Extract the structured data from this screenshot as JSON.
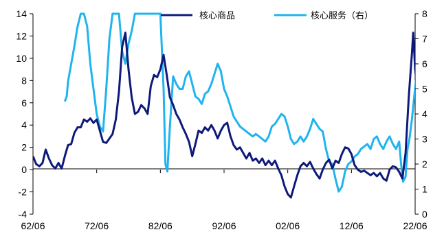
{
  "chart_data": {
    "type": "line",
    "x_ticks": [
      "62/06",
      "72/06",
      "82/06",
      "92/06",
      "02/06",
      "12/06",
      "22/06"
    ],
    "left_axis": {
      "ylim": [
        -4,
        14
      ],
      "ticks": [
        "-4",
        "-2",
        "0",
        "2",
        "4",
        "6",
        "8",
        "10",
        "12",
        "14"
      ]
    },
    "right_axis": {
      "ylim": [
        0,
        8
      ],
      "ticks": [
        "0",
        "1",
        "2",
        "3",
        "4",
        "5",
        "6",
        "7",
        "8"
      ]
    },
    "legend_position": "top",
    "series": [
      {
        "name": "核心商品",
        "axis": "left",
        "color": "#0d1a7a",
        "points": [
          [
            1962.5,
            1.2
          ],
          [
            1963.0,
            0.5
          ],
          [
            1963.5,
            0.3
          ],
          [
            1964.0,
            0.6
          ],
          [
            1964.5,
            1.8
          ],
          [
            1965.0,
            1.0
          ],
          [
            1965.5,
            0.4
          ],
          [
            1966.0,
            0.1
          ],
          [
            1966.5,
            0.6
          ],
          [
            1967.0,
            0.1
          ],
          [
            1967.5,
            1.2
          ],
          [
            1968.0,
            2.2
          ],
          [
            1968.5,
            2.3
          ],
          [
            1969.0,
            3.3
          ],
          [
            1969.5,
            3.8
          ],
          [
            1970.0,
            3.8
          ],
          [
            1970.5,
            4.5
          ],
          [
            1971.0,
            4.3
          ],
          [
            1971.5,
            4.6
          ],
          [
            1972.0,
            4.2
          ],
          [
            1972.5,
            4.5
          ],
          [
            1973.0,
            3.5
          ],
          [
            1973.5,
            2.5
          ],
          [
            1974.0,
            2.4
          ],
          [
            1974.5,
            2.8
          ],
          [
            1975.0,
            3.2
          ],
          [
            1975.5,
            4.5
          ],
          [
            1976.0,
            7.0
          ],
          [
            1976.5,
            11.0
          ],
          [
            1977.0,
            12.3
          ],
          [
            1977.5,
            9.0
          ],
          [
            1978.0,
            6.5
          ],
          [
            1978.5,
            5.0
          ],
          [
            1979.0,
            5.2
          ],
          [
            1979.5,
            5.8
          ],
          [
            1980.0,
            5.5
          ],
          [
            1980.5,
            5.0
          ],
          [
            1981.0,
            7.5
          ],
          [
            1981.5,
            8.5
          ],
          [
            1982.0,
            8.3
          ],
          [
            1982.5,
            9.0
          ],
          [
            1983.0,
            10.3
          ],
          [
            1983.5,
            8.5
          ],
          [
            1984.0,
            6.5
          ],
          [
            1984.5,
            5.8
          ],
          [
            1985.0,
            5.0
          ],
          [
            1985.5,
            4.5
          ],
          [
            1986.0,
            3.8
          ],
          [
            1986.5,
            3.2
          ],
          [
            1987.0,
            2.5
          ],
          [
            1987.5,
            1.2
          ],
          [
            1988.0,
            2.3
          ],
          [
            1988.5,
            3.5
          ],
          [
            1989.0,
            3.3
          ],
          [
            1989.5,
            3.8
          ],
          [
            1990.0,
            3.5
          ],
          [
            1990.5,
            4.0
          ],
          [
            1991.0,
            3.5
          ],
          [
            1991.5,
            2.8
          ],
          [
            1992.0,
            3.5
          ],
          [
            1992.5,
            4.0
          ],
          [
            1993.0,
            4.2
          ],
          [
            1993.5,
            3.0
          ],
          [
            1994.0,
            2.2
          ],
          [
            1994.5,
            1.8
          ],
          [
            1995.0,
            2.0
          ],
          [
            1995.5,
            1.5
          ],
          [
            1996.0,
            1.0
          ],
          [
            1996.5,
            1.5
          ],
          [
            1997.0,
            0.8
          ],
          [
            1997.5,
            1.0
          ],
          [
            1998.0,
            0.6
          ],
          [
            1998.5,
            1.0
          ],
          [
            1999.0,
            0.4
          ],
          [
            1999.5,
            0.8
          ],
          [
            2000.0,
            0.4
          ],
          [
            2000.5,
            0.8
          ],
          [
            2001.0,
            0.1
          ],
          [
            2001.5,
            -0.5
          ],
          [
            2002.0,
            -1.5
          ],
          [
            2002.5,
            -2.2
          ],
          [
            2003.0,
            -2.5
          ],
          [
            2003.5,
            -1.5
          ],
          [
            2004.0,
            -0.5
          ],
          [
            2004.5,
            0.3
          ],
          [
            2005.0,
            0.6
          ],
          [
            2005.5,
            0.3
          ],
          [
            2006.0,
            0.7
          ],
          [
            2006.5,
            0.1
          ],
          [
            2007.0,
            -0.4
          ],
          [
            2007.5,
            -0.8
          ],
          [
            2008.0,
            0.0
          ],
          [
            2008.5,
            0.6
          ],
          [
            2009.0,
            0.9
          ],
          [
            2009.5,
            0.1
          ],
          [
            2010.0,
            0.8
          ],
          [
            2010.5,
            0.6
          ],
          [
            2011.0,
            1.4
          ],
          [
            2011.5,
            2.0
          ],
          [
            2012.0,
            1.9
          ],
          [
            2012.5,
            1.4
          ],
          [
            2013.0,
            0.4
          ],
          [
            2013.5,
            0.0
          ],
          [
            2014.0,
            -0.2
          ],
          [
            2014.5,
            -0.1
          ],
          [
            2015.0,
            -0.3
          ],
          [
            2015.5,
            -0.5
          ],
          [
            2016.0,
            -0.3
          ],
          [
            2016.5,
            -0.6
          ],
          [
            2017.0,
            -0.3
          ],
          [
            2017.5,
            -0.8
          ],
          [
            2018.0,
            -1.0
          ],
          [
            2018.5,
            0.0
          ],
          [
            2019.0,
            0.3
          ],
          [
            2019.5,
            0.2
          ],
          [
            2020.0,
            -0.2
          ],
          [
            2020.5,
            -0.8
          ],
          [
            2021.0,
            1.5
          ],
          [
            2021.5,
            6.5
          ],
          [
            2022.0,
            10.5
          ],
          [
            2022.2,
            12.3
          ],
          [
            2022.5,
            9.0
          ],
          [
            2022.7,
            8.0
          ]
        ]
      },
      {
        "name": "核心服务（右）",
        "axis": "right",
        "color": "#1fb4ee",
        "points": [
          [
            1967.5,
            4.5
          ],
          [
            1967.8,
            4.7
          ],
          [
            1968.0,
            5.3
          ],
          [
            1968.5,
            6.0
          ],
          [
            1969.0,
            6.7
          ],
          [
            1969.5,
            7.5
          ],
          [
            1970.0,
            8.0
          ],
          [
            1970.5,
            8.0
          ],
          [
            1971.0,
            7.5
          ],
          [
            1971.5,
            6.0
          ],
          [
            1972.0,
            5.0
          ],
          [
            1972.5,
            4.0
          ],
          [
            1973.0,
            3.5
          ],
          [
            1973.5,
            3.3
          ],
          [
            1974.0,
            5.0
          ],
          [
            1974.5,
            7.0
          ],
          [
            1975.0,
            8.0
          ],
          [
            1976.0,
            8.0
          ],
          [
            1976.5,
            6.5
          ],
          [
            1977.0,
            6.0
          ],
          [
            1977.5,
            6.8
          ],
          [
            1978.0,
            7.3
          ],
          [
            1978.5,
            8.0
          ],
          [
            1981.0,
            8.0
          ],
          [
            1982.0,
            8.0
          ],
          [
            1982.5,
            8.0
          ],
          [
            1983.0,
            5.0
          ],
          [
            1983.3,
            2.0
          ],
          [
            1983.6,
            1.7
          ],
          [
            1984.0,
            3.5
          ],
          [
            1984.5,
            5.5
          ],
          [
            1985.0,
            5.2
          ],
          [
            1985.5,
            5.0
          ],
          [
            1986.0,
            5.0
          ],
          [
            1986.5,
            5.5
          ],
          [
            1987.0,
            5.7
          ],
          [
            1987.5,
            5.2
          ],
          [
            1988.0,
            4.7
          ],
          [
            1988.5,
            4.6
          ],
          [
            1989.0,
            4.4
          ],
          [
            1989.5,
            4.8
          ],
          [
            1990.0,
            4.9
          ],
          [
            1990.5,
            5.2
          ],
          [
            1991.0,
            5.6
          ],
          [
            1991.5,
            6.0
          ],
          [
            1992.0,
            5.7
          ],
          [
            1992.5,
            5.0
          ],
          [
            1993.0,
            4.7
          ],
          [
            1993.5,
            4.3
          ],
          [
            1994.0,
            3.9
          ],
          [
            1994.5,
            3.7
          ],
          [
            1995.0,
            3.5
          ],
          [
            1995.5,
            3.4
          ],
          [
            1996.0,
            3.3
          ],
          [
            1996.5,
            3.2
          ],
          [
            1997.0,
            3.1
          ],
          [
            1997.5,
            3.2
          ],
          [
            1998.0,
            3.1
          ],
          [
            1998.5,
            3.0
          ],
          [
            1999.0,
            2.9
          ],
          [
            1999.5,
            3.1
          ],
          [
            2000.0,
            3.5
          ],
          [
            2000.5,
            3.6
          ],
          [
            2001.0,
            3.8
          ],
          [
            2001.5,
            4.0
          ],
          [
            2002.0,
            3.9
          ],
          [
            2002.5,
            3.5
          ],
          [
            2003.0,
            3.0
          ],
          [
            2003.5,
            2.8
          ],
          [
            2004.0,
            2.9
          ],
          [
            2004.5,
            3.1
          ],
          [
            2005.0,
            2.9
          ],
          [
            2005.5,
            3.1
          ],
          [
            2006.0,
            3.4
          ],
          [
            2006.5,
            3.8
          ],
          [
            2007.0,
            3.6
          ],
          [
            2007.5,
            3.4
          ],
          [
            2008.0,
            3.3
          ],
          [
            2008.5,
            2.6
          ],
          [
            2009.0,
            2.1
          ],
          [
            2009.5,
            2.0
          ],
          [
            2010.0,
            1.4
          ],
          [
            2010.5,
            0.9
          ],
          [
            2011.0,
            1.1
          ],
          [
            2011.5,
            1.7
          ],
          [
            2012.0,
            2.0
          ],
          [
            2012.5,
            2.1
          ],
          [
            2013.0,
            2.3
          ],
          [
            2013.5,
            2.4
          ],
          [
            2014.0,
            2.6
          ],
          [
            2014.5,
            2.7
          ],
          [
            2015.0,
            2.8
          ],
          [
            2015.5,
            2.6
          ],
          [
            2016.0,
            3.0
          ],
          [
            2016.5,
            3.1
          ],
          [
            2017.0,
            2.8
          ],
          [
            2017.5,
            2.6
          ],
          [
            2018.0,
            2.9
          ],
          [
            2018.5,
            3.1
          ],
          [
            2019.0,
            2.8
          ],
          [
            2019.5,
            2.6
          ],
          [
            2020.0,
            2.9
          ],
          [
            2020.3,
            2.0
          ],
          [
            2020.6,
            1.3
          ],
          [
            2021.0,
            1.5
          ],
          [
            2021.3,
            2.6
          ],
          [
            2021.6,
            3.0
          ],
          [
            2022.0,
            3.8
          ],
          [
            2022.4,
            4.8
          ],
          [
            2022.7,
            5.5
          ]
        ]
      }
    ]
  }
}
